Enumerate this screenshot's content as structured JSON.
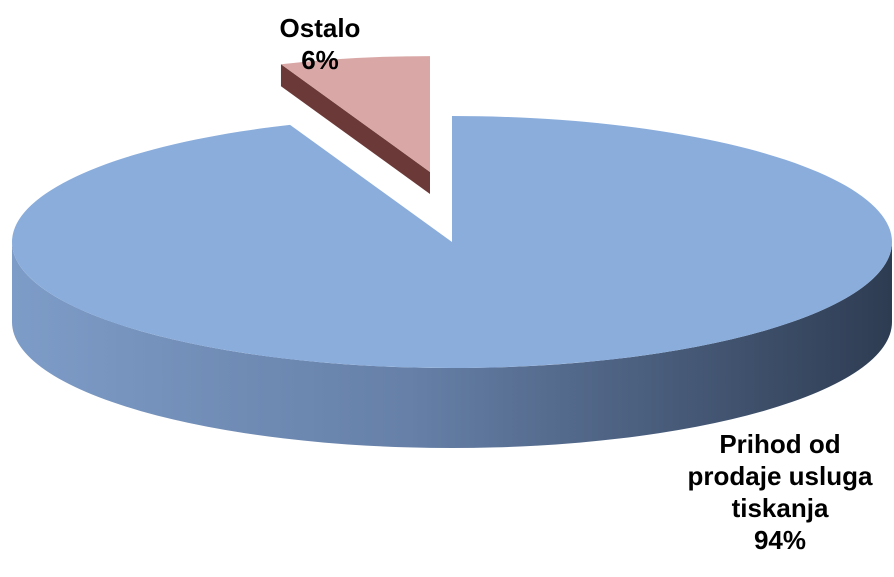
{
  "chart_data": {
    "type": "pie",
    "style": "3d-exploded",
    "slices": [
      {
        "label_lines": [
          "Prihod od",
          "prodaje usluga",
          "tiskanja"
        ],
        "percent_label": "94%",
        "value": 94,
        "color_top": "#8aaddc",
        "color_side_light": "#7d9cc7",
        "color_side_dark": "#2e3c52"
      },
      {
        "label_lines": [
          "Ostalo"
        ],
        "percent_label": "6%",
        "value": 6,
        "color_top": "#d9a8a6",
        "color_side_dark": "#6b3a38"
      }
    ],
    "legend": "none",
    "title": ""
  }
}
